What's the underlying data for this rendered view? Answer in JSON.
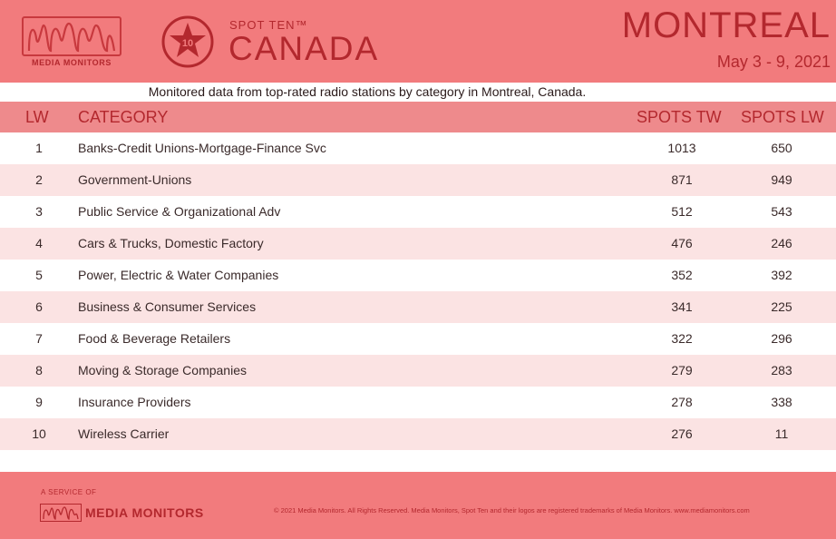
{
  "header": {
    "logo_text": "MEDIA MONITORS",
    "badge_number": "10",
    "spot_label": "SPOT TEN™",
    "country": "CANADA",
    "city": "MONTREAL",
    "date_range": "May 3 - 9, 2021"
  },
  "subtitle": "Monitored data from top-rated radio stations by category in Montreal, Canada.",
  "table": {
    "columns": {
      "lw": "LW",
      "category": "CATEGORY",
      "spots_tw": "SPOTS TW",
      "spots_lw": "SPOTS LW"
    },
    "rows": [
      {
        "lw": "1",
        "category": "Banks-Credit Unions-Mortgage-Finance Svc",
        "spots_tw": "1013",
        "spots_lw": "650"
      },
      {
        "lw": "2",
        "category": "Government-Unions",
        "spots_tw": "871",
        "spots_lw": "949"
      },
      {
        "lw": "3",
        "category": "Public Service & Organizational Adv",
        "spots_tw": "512",
        "spots_lw": "543"
      },
      {
        "lw": "4",
        "category": "Cars & Trucks, Domestic Factory",
        "spots_tw": "476",
        "spots_lw": "246"
      },
      {
        "lw": "5",
        "category": "Power, Electric & Water Companies",
        "spots_tw": "352",
        "spots_lw": "392"
      },
      {
        "lw": "6",
        "category": "Business & Consumer Services",
        "spots_tw": "341",
        "spots_lw": "225"
      },
      {
        "lw": "7",
        "category": "Food & Beverage Retailers",
        "spots_tw": "322",
        "spots_lw": "296"
      },
      {
        "lw": "8",
        "category": "Moving & Storage Companies",
        "spots_tw": "279",
        "spots_lw": "283"
      },
      {
        "lw": "9",
        "category": "Insurance Providers",
        "spots_tw": "278",
        "spots_lw": "338"
      },
      {
        "lw": "10",
        "category": "Wireless Carrier",
        "spots_tw": "276",
        "spots_lw": "11"
      }
    ]
  },
  "footer": {
    "service_label": "A SERVICE OF",
    "brand": "MEDIA MONITORS",
    "copyright": "© 2021 Media Monitors. All Rights Reserved. Media Monitors, Spot Ten and their logos are registered trademarks of Media Monitors. www.mediamonitors.com"
  },
  "colors": {
    "header_bg": "#f27b7d",
    "accent": "#b3282e",
    "row_alt": "#fbe3e3"
  }
}
